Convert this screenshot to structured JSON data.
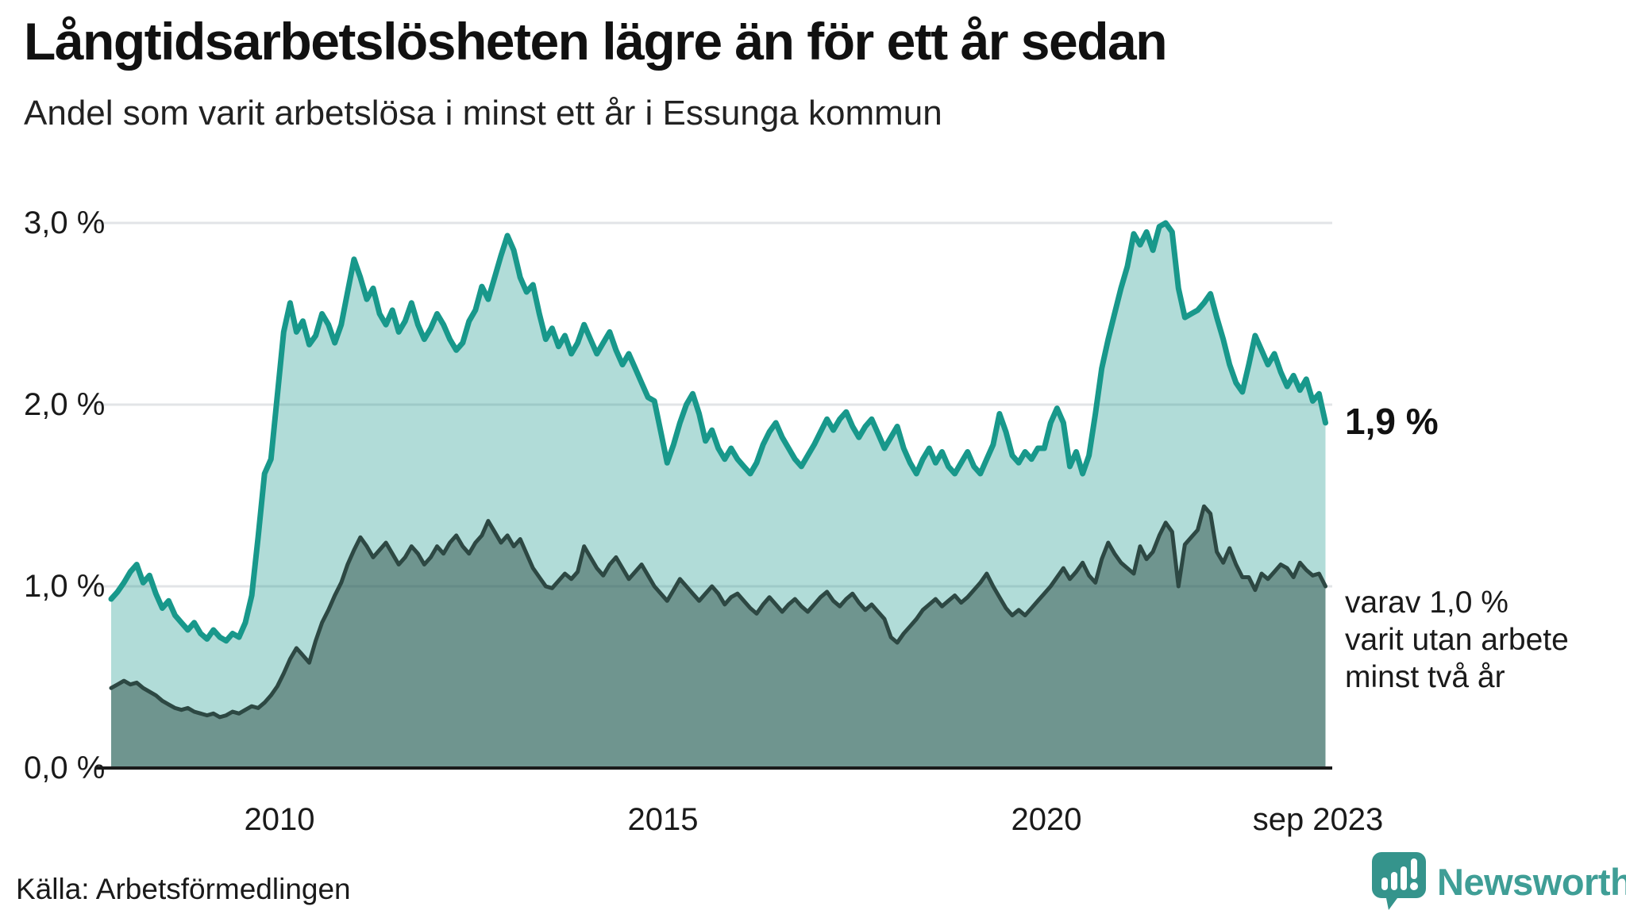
{
  "header": {
    "title": "Långtidsarbetslösheten lägre än för ett år sedan",
    "subtitle": "Andel som varit arbetslösa i minst ett år i Essunga kommun"
  },
  "annotations": {
    "end_value": "1,9 %",
    "secondary": [
      "varav 1,0 %",
      "varit utan arbete",
      "minst två år"
    ]
  },
  "footer": {
    "source": "Källa: Arbetsförmedlingen",
    "brand": "Newsworthy"
  },
  "colors": {
    "series1_line": "#18988b",
    "series1_fill": "rgba(25,153,140,0.34)",
    "series2_line": "#2d4843",
    "series2_fill": "rgba(31,61,55,0.45)",
    "gridline": "#e2e4e7",
    "axis": "#1a1a1a",
    "brand_teal": "#3f9e96",
    "logo_bubble": "#35948c"
  },
  "chart_data": {
    "type": "area",
    "title": "Långtidsarbetslösheten lägre än för ett år sedan",
    "subtitle": "Andel som varit arbetslösa i minst ett år i Essunga kommun",
    "unit": "%",
    "freq": "monthly",
    "start": "2007-11",
    "end": "2023-09",
    "grid": "horizontal",
    "y_range": [
      0,
      3.2
    ],
    "y_ticks": [
      {
        "label": "0,0 %",
        "value": 0
      },
      {
        "label": "1,0 %",
        "value": 1
      },
      {
        "label": "2,0 %",
        "value": 2
      },
      {
        "label": "3,0 %",
        "value": 3
      }
    ],
    "x_ticks": [
      {
        "label": "2010",
        "year": 2010.0
      },
      {
        "label": "2015",
        "year": 2015.0
      },
      {
        "label": "2020",
        "year": 2020.0
      },
      {
        "label": "sep 2023",
        "year": 2023.667
      }
    ],
    "series": [
      {
        "name": "Andel arbetslösa minst ett år",
        "end_label": "1,9 %",
        "values": [
          0.93,
          0.97,
          1.02,
          1.08,
          1.12,
          1.02,
          1.06,
          0.96,
          0.88,
          0.92,
          0.84,
          0.8,
          0.76,
          0.8,
          0.74,
          0.71,
          0.76,
          0.72,
          0.7,
          0.74,
          0.72,
          0.8,
          0.95,
          1.27,
          1.62,
          1.7,
          2.05,
          2.4,
          2.56,
          2.4,
          2.46,
          2.33,
          2.38,
          2.5,
          2.44,
          2.34,
          2.44,
          2.62,
          2.8,
          2.7,
          2.58,
          2.64,
          2.5,
          2.44,
          2.52,
          2.4,
          2.46,
          2.56,
          2.44,
          2.36,
          2.42,
          2.5,
          2.44,
          2.36,
          2.3,
          2.34,
          2.46,
          2.52,
          2.65,
          2.58,
          2.7,
          2.82,
          2.93,
          2.85,
          2.7,
          2.62,
          2.66,
          2.5,
          2.36,
          2.42,
          2.32,
          2.38,
          2.28,
          2.34,
          2.44,
          2.36,
          2.28,
          2.34,
          2.4,
          2.3,
          2.22,
          2.28,
          2.2,
          2.12,
          2.04,
          2.02,
          1.85,
          1.68,
          1.78,
          1.9,
          2.0,
          2.06,
          1.95,
          1.8,
          1.86,
          1.76,
          1.7,
          1.76,
          1.7,
          1.66,
          1.62,
          1.68,
          1.78,
          1.85,
          1.9,
          1.82,
          1.76,
          1.7,
          1.66,
          1.72,
          1.78,
          1.85,
          1.92,
          1.86,
          1.92,
          1.96,
          1.88,
          1.82,
          1.88,
          1.92,
          1.84,
          1.76,
          1.82,
          1.88,
          1.76,
          1.68,
          1.62,
          1.7,
          1.76,
          1.68,
          1.74,
          1.66,
          1.62,
          1.68,
          1.74,
          1.66,
          1.62,
          1.7,
          1.78,
          1.95,
          1.85,
          1.72,
          1.68,
          1.74,
          1.7,
          1.76,
          1.76,
          1.9,
          1.98,
          1.9,
          1.66,
          1.74,
          1.62,
          1.72,
          1.95,
          2.2,
          2.36,
          2.5,
          2.64,
          2.76,
          2.94,
          2.88,
          2.95,
          2.85,
          2.98,
          3.0,
          2.95,
          2.64,
          2.48,
          2.5,
          2.52,
          2.56,
          2.61,
          2.48,
          2.36,
          2.22,
          2.12,
          2.07,
          2.22,
          2.38,
          2.3,
          2.22,
          2.28,
          2.18,
          2.1,
          2.16,
          2.08,
          2.14,
          2.02,
          2.06,
          1.9
        ]
      },
      {
        "name": "Andel arbetslösa minst två år",
        "end_label": "varav 1,0 % varit utan arbete minst två år",
        "values": [
          0.44,
          0.46,
          0.48,
          0.46,
          0.47,
          0.44,
          0.42,
          0.4,
          0.37,
          0.35,
          0.33,
          0.32,
          0.33,
          0.31,
          0.3,
          0.29,
          0.3,
          0.28,
          0.29,
          0.31,
          0.3,
          0.32,
          0.34,
          0.33,
          0.36,
          0.4,
          0.45,
          0.52,
          0.6,
          0.66,
          0.62,
          0.58,
          0.7,
          0.8,
          0.87,
          0.95,
          1.02,
          1.12,
          1.2,
          1.27,
          1.22,
          1.16,
          1.2,
          1.24,
          1.18,
          1.12,
          1.16,
          1.22,
          1.18,
          1.12,
          1.16,
          1.22,
          1.18,
          1.24,
          1.28,
          1.22,
          1.18,
          1.24,
          1.28,
          1.36,
          1.3,
          1.24,
          1.28,
          1.22,
          1.26,
          1.18,
          1.1,
          1.05,
          1.0,
          0.99,
          1.03,
          1.07,
          1.04,
          1.08,
          1.22,
          1.16,
          1.1,
          1.06,
          1.12,
          1.16,
          1.1,
          1.04,
          1.08,
          1.12,
          1.06,
          1.0,
          0.96,
          0.92,
          0.98,
          1.04,
          1.0,
          0.96,
          0.92,
          0.96,
          1.0,
          0.96,
          0.9,
          0.94,
          0.96,
          0.92,
          0.88,
          0.85,
          0.9,
          0.94,
          0.9,
          0.86,
          0.9,
          0.93,
          0.89,
          0.86,
          0.9,
          0.94,
          0.97,
          0.92,
          0.89,
          0.93,
          0.96,
          0.91,
          0.87,
          0.9,
          0.86,
          0.82,
          0.72,
          0.69,
          0.74,
          0.78,
          0.82,
          0.87,
          0.9,
          0.93,
          0.89,
          0.92,
          0.95,
          0.91,
          0.94,
          0.98,
          1.02,
          1.07,
          1.0,
          0.94,
          0.88,
          0.84,
          0.87,
          0.84,
          0.88,
          0.92,
          0.96,
          1.0,
          1.05,
          1.1,
          1.04,
          1.08,
          1.13,
          1.06,
          1.02,
          1.15,
          1.24,
          1.18,
          1.13,
          1.1,
          1.07,
          1.22,
          1.15,
          1.19,
          1.28,
          1.35,
          1.3,
          1.0,
          1.23,
          1.27,
          1.31,
          1.44,
          1.4,
          1.19,
          1.13,
          1.21,
          1.12,
          1.05,
          1.05,
          0.98,
          1.07,
          1.04,
          1.08,
          1.12,
          1.1,
          1.05,
          1.13,
          1.09,
          1.06,
          1.07,
          1.0
        ]
      }
    ]
  }
}
